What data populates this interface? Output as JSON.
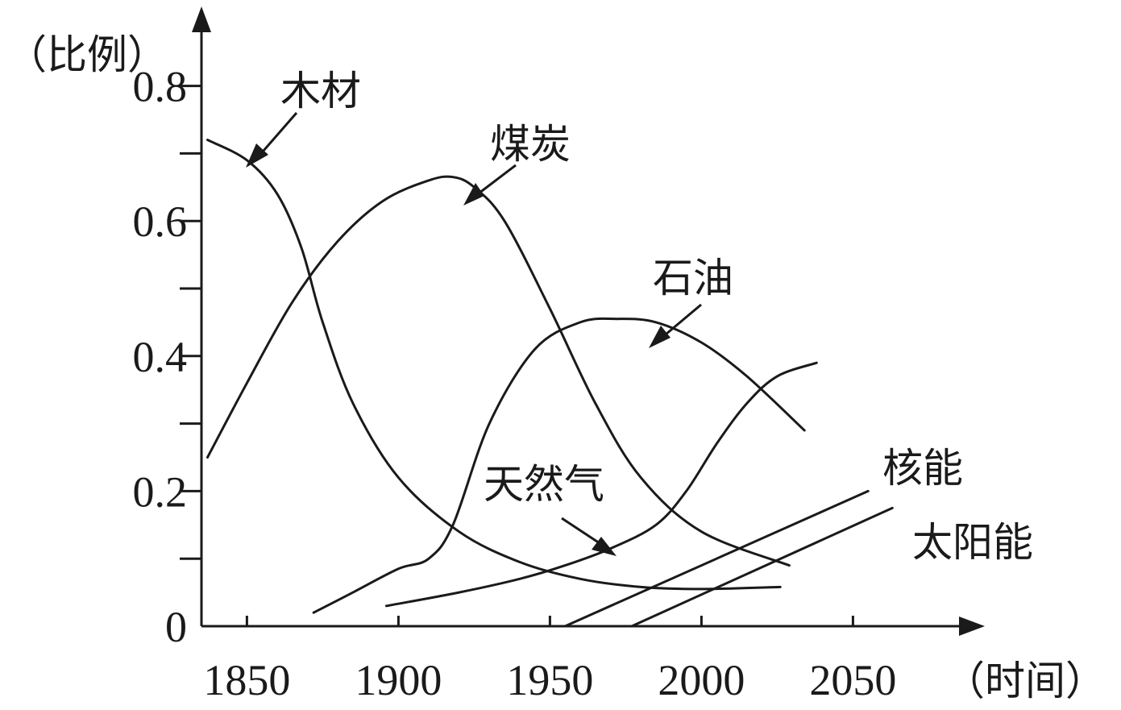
{
  "chart_data": {
    "type": "line",
    "xlabel": "（时间）",
    "ylabel": "（比例）",
    "xlim": [
      1835,
      2080
    ],
    "ylim": [
      0,
      0.85
    ],
    "x_ticks": [
      1850,
      1900,
      1950,
      2000,
      2050
    ],
    "x_tick_labels": [
      "1850",
      "1900",
      "1950",
      "2000",
      "2050"
    ],
    "y_ticks": [
      0,
      0.1,
      0.2,
      0.3,
      0.4,
      0.5,
      0.6,
      0.7,
      0.8
    ],
    "y_tick_labels": [
      {
        "value": 0,
        "label": "0"
      },
      {
        "value": 0.2,
        "label": "0.2"
      },
      {
        "value": 0.4,
        "label": "0.4"
      },
      {
        "value": 0.6,
        "label": "0.6"
      },
      {
        "value": 0.8,
        "label": "0.8"
      }
    ],
    "grid": false,
    "series": [
      {
        "name": "木材",
        "x": [
          1837,
          1850,
          1860,
          1868,
          1875,
          1885,
          1900,
          1920,
          1940,
          1960,
          1980,
          2000,
          2026
        ],
        "y": [
          0.72,
          0.69,
          0.64,
          0.56,
          0.45,
          0.33,
          0.22,
          0.14,
          0.095,
          0.07,
          0.058,
          0.055,
          0.058
        ]
      },
      {
        "name": "煤炭",
        "x": [
          1837,
          1850,
          1865,
          1880,
          1895,
          1910,
          1918,
          1925,
          1935,
          1950,
          1965,
          1980,
          2000,
          2029
        ],
        "y": [
          0.25,
          0.36,
          0.48,
          0.57,
          0.63,
          0.66,
          0.665,
          0.65,
          0.6,
          0.47,
          0.33,
          0.22,
          0.14,
          0.09
        ]
      },
      {
        "name": "石油",
        "x": [
          1872,
          1885,
          1900,
          1910,
          1918,
          1930,
          1945,
          1960,
          1972,
          1985,
          2000,
          2015,
          2034
        ],
        "y": [
          0.02,
          0.05,
          0.085,
          0.1,
          0.15,
          0.3,
          0.41,
          0.45,
          0.455,
          0.45,
          0.42,
          0.37,
          0.29
        ]
      },
      {
        "name": "天然气",
        "x": [
          1896,
          1920,
          1940,
          1955,
          1970,
          1985,
          1995,
          2005,
          2015,
          2025,
          2038
        ],
        "y": [
          0.03,
          0.05,
          0.07,
          0.09,
          0.115,
          0.15,
          0.2,
          0.27,
          0.33,
          0.37,
          0.39
        ]
      },
      {
        "name": "核能",
        "x": [
          1955,
          2055
        ],
        "y": [
          0,
          0.2
        ]
      },
      {
        "name": "太阳能",
        "x": [
          1977,
          2063
        ],
        "y": [
          0,
          0.175
        ]
      }
    ]
  }
}
